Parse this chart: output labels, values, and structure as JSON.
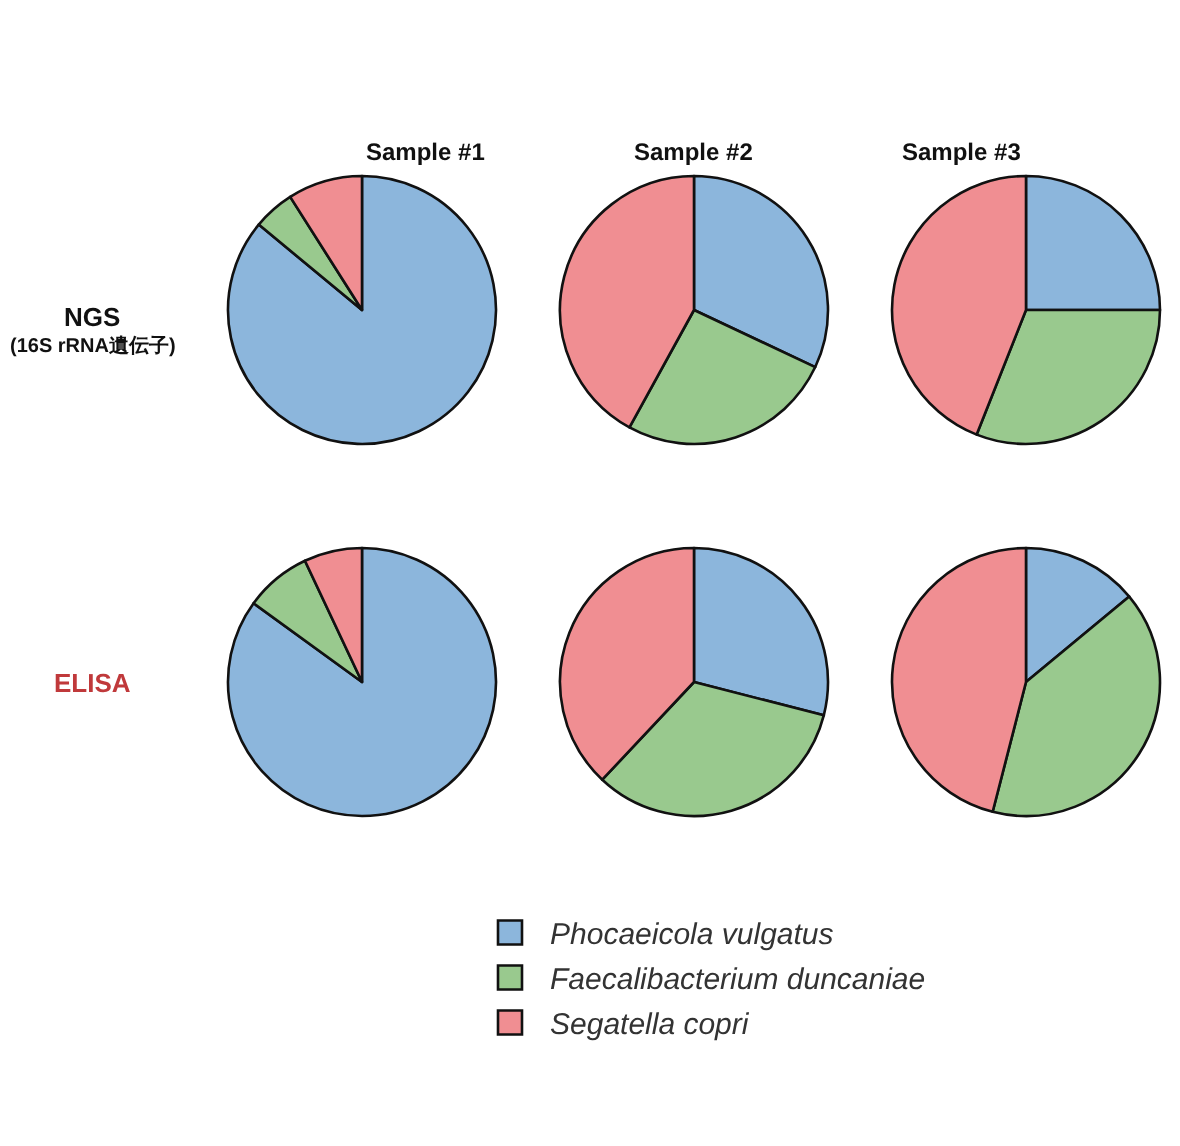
{
  "chart_data": [
    {
      "type": "pie",
      "title": "Sample #1",
      "annotations": [
        "NGS",
        "(16S rRNA遺伝子)"
      ],
      "categories": [
        "Phocaeicola vulgatus",
        "Faecalibacterium duncaniae",
        "Segatella copri"
      ],
      "values": [
        86,
        5,
        9
      ],
      "colors": [
        "#8cb6dc",
        "#99c98e",
        "#f08e92"
      ],
      "legend": "bottom"
    },
    {
      "type": "pie",
      "title": "Sample #2",
      "categories": [
        null,
        null,
        null
      ],
      "values": [
        32,
        26,
        42
      ],
      "colors": [
        "#8cb6dc",
        "#99c98e",
        "#f08e92"
      ]
    },
    {
      "type": "pie",
      "title": "Sample #3",
      "categories": [
        null,
        null,
        null
      ],
      "values": [
        25,
        31,
        44
      ],
      "colors": [
        "#8cb6dc",
        "#99c98e",
        "#f08e92"
      ]
    },
    {
      "type": "pie",
      "annotations": [
        "ELISA"
      ],
      "categories": [
        null,
        null,
        null
      ],
      "values": [
        85,
        8,
        7
      ],
      "colors": [
        "#8cb6dc",
        "#99c98e",
        "#f08e92"
      ]
    },
    {
      "type": "pie",
      "categories": [
        null,
        null,
        null
      ],
      "values": [
        29,
        33,
        38
      ],
      "colors": [
        "#8cb6dc",
        "#99c98e",
        "#f08e92"
      ]
    },
    {
      "type": "pie",
      "categories": [
        null,
        null,
        null
      ],
      "values": [
        14,
        40,
        46
      ],
      "colors": [
        "#8cb6dc",
        "#99c98e",
        "#f08e92"
      ]
    }
  ]
}
